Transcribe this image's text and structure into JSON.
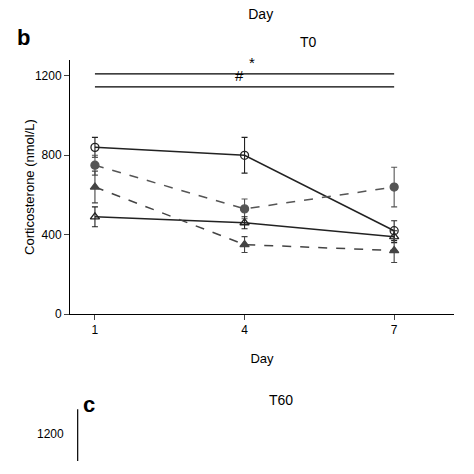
{
  "chart_data": {
    "type": "line",
    "title": "Day",
    "subtitle": "T0",
    "x_label": "Day",
    "y_label": "Corticosterone (nmol/L)",
    "x": [
      1,
      4,
      7
    ],
    "xlim": [
      0.5,
      8.2
    ],
    "xticks": [
      1,
      4,
      7
    ],
    "ylim": [
      0,
      1280
    ],
    "yticks": [
      0,
      400,
      800,
      1200
    ],
    "grid": false,
    "series": [
      {
        "values": [
          840,
          800,
          420
        ],
        "yerr": [
          50,
          90,
          50
        ],
        "color": "#222222",
        "marker": "circle-open",
        "line_style": "solid"
      },
      {
        "values": [
          750,
          530,
          640
        ],
        "yerr": [
          50,
          50,
          100
        ],
        "color": "#555555",
        "marker": "circle",
        "line_style": "dash"
      },
      {
        "values": [
          490,
          460,
          390
        ],
        "yerr": [
          50,
          30,
          30
        ],
        "color": "#222222",
        "marker": "triangle-up-open",
        "line_style": "solid"
      },
      {
        "values": [
          640,
          350,
          320
        ],
        "yerr": [
          80,
          40,
          60
        ],
        "color": "#444444",
        "marker": "triangle-up",
        "line_style": "dash"
      }
    ],
    "sig_bars": [
      {
        "x1": 1,
        "x2": 7,
        "y": 1210,
        "label": "*"
      },
      {
        "x1": 1,
        "x2": 7,
        "y": 1145,
        "label": "#"
      }
    ],
    "annotations": [
      "b",
      "c",
      "T60",
      "1200"
    ]
  }
}
